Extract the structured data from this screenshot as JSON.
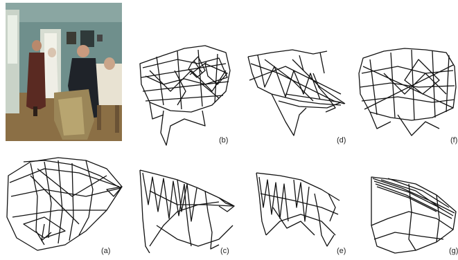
{
  "labels": {
    "a": "(a)",
    "b": "(b)",
    "c": "(c)",
    "d": "(d)",
    "e": "(e)",
    "f": "(f)",
    "g": "(g)"
  },
  "colors": {
    "ink": "#111111",
    "wall": "#6f8f8c",
    "floor": "#8b6f45"
  }
}
